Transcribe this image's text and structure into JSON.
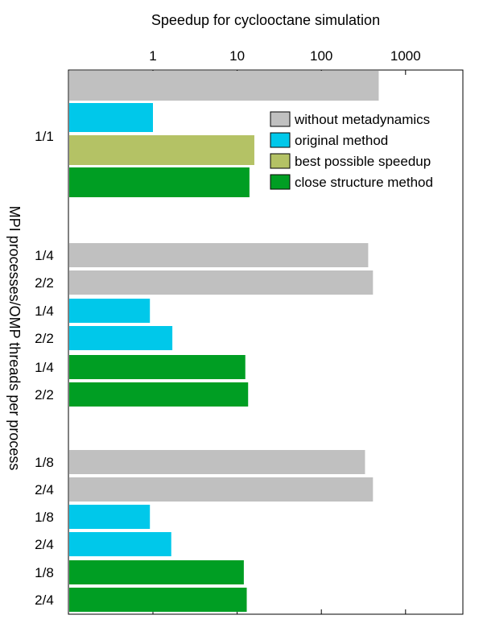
{
  "chart_data": {
    "type": "bar",
    "orientation": "horizontal",
    "title": "Speedup for cyclooctane simulation",
    "xscale": "log",
    "xlim": [
      0.1,
      6000
    ],
    "xticks": [
      1,
      10,
      100,
      1000
    ],
    "xtick_labels": [
      "1",
      "10",
      "100",
      "1000"
    ],
    "ylabel": "MPI processes/OMP threads per process",
    "legend": {
      "position": "top-right",
      "entries": [
        {
          "label": "without metadynamics",
          "color": "#c0c0c0"
        },
        {
          "label": "original method",
          "color": "#00c8ea"
        },
        {
          "label": "best possible speedup",
          "color": "#b4c265"
        },
        {
          "label": "close structure method",
          "color": "#009e23"
        }
      ]
    },
    "groups": [
      {
        "label": "1/1",
        "bars": [
          {
            "series": "without metadynamics",
            "value": 480
          },
          {
            "series": "original method",
            "value": 1.0
          },
          {
            "series": "best possible speedup",
            "value": 16
          },
          {
            "series": "close structure method",
            "value": 14
          }
        ]
      },
      {
        "labels": [
          "1/4",
          "2/2",
          "1/4",
          "2/2",
          "1/4",
          "2/2"
        ],
        "bars": [
          {
            "series": "without metadynamics",
            "value": 360
          },
          {
            "series": "without metadynamics",
            "value": 410
          },
          {
            "series": "original method",
            "value": 0.92
          },
          {
            "series": "original method",
            "value": 1.7
          },
          {
            "series": "close structure method",
            "value": 12.5
          },
          {
            "series": "close structure method",
            "value": 13.5
          }
        ]
      },
      {
        "labels": [
          "1/8",
          "2/4",
          "1/8",
          "2/4",
          "1/8",
          "2/4"
        ],
        "bars": [
          {
            "series": "without metadynamics",
            "value": 330
          },
          {
            "series": "without metadynamics",
            "value": 410
          },
          {
            "series": "original method",
            "value": 0.92
          },
          {
            "series": "original method",
            "value": 1.65
          },
          {
            "series": "close structure method",
            "value": 12
          },
          {
            "series": "close structure method",
            "value": 13
          }
        ]
      }
    ]
  }
}
